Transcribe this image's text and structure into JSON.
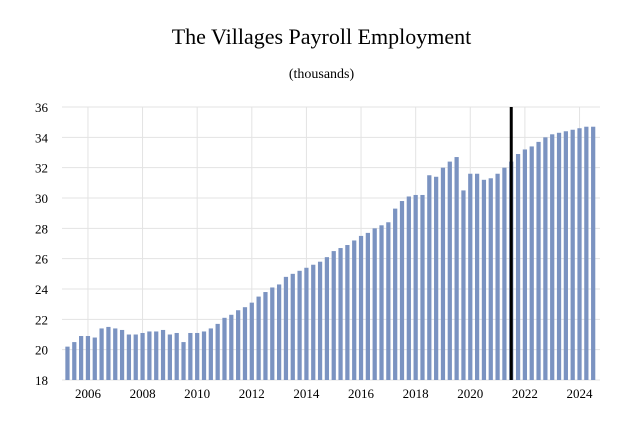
{
  "chart_data": {
    "type": "bar",
    "title": "The Villages Payroll Employment",
    "subtitle": "(thousands)",
    "xlabel": "",
    "ylabel": "",
    "ylim": [
      18,
      36
    ],
    "yticks": [
      18,
      20,
      22,
      24,
      26,
      28,
      30,
      32,
      34,
      36
    ],
    "xticks": [
      2006,
      2008,
      2010,
      2012,
      2014,
      2016,
      2018,
      2020,
      2022,
      2024
    ],
    "grid": true,
    "legend": "none",
    "bar_color": "#7b93c1",
    "vline_color": "#000000",
    "vline_x": 2021.5,
    "x": [
      2005.25,
      2005.5,
      2005.75,
      2006.0,
      2006.25,
      2006.5,
      2006.75,
      2007.0,
      2007.25,
      2007.5,
      2007.75,
      2008.0,
      2008.25,
      2008.5,
      2008.75,
      2009.0,
      2009.25,
      2009.5,
      2009.75,
      2010.0,
      2010.25,
      2010.5,
      2010.75,
      2011.0,
      2011.25,
      2011.5,
      2011.75,
      2012.0,
      2012.25,
      2012.5,
      2012.75,
      2013.0,
      2013.25,
      2013.5,
      2013.75,
      2014.0,
      2014.25,
      2014.5,
      2014.75,
      2015.0,
      2015.25,
      2015.5,
      2015.75,
      2016.0,
      2016.25,
      2016.5,
      2016.75,
      2017.0,
      2017.25,
      2017.5,
      2017.75,
      2018.0,
      2018.25,
      2018.5,
      2018.75,
      2019.0,
      2019.25,
      2019.5,
      2019.75,
      2020.0,
      2020.25,
      2020.5,
      2020.75,
      2021.0,
      2021.25,
      2021.5,
      2021.75,
      2022.0,
      2022.25,
      2022.5,
      2022.75,
      2023.0,
      2023.25,
      2023.5,
      2023.75,
      2024.0,
      2024.25,
      2024.5
    ],
    "values": [
      20.2,
      20.5,
      20.9,
      20.9,
      20.8,
      21.4,
      21.5,
      21.4,
      21.3,
      21.0,
      21.0,
      21.1,
      21.2,
      21.2,
      21.3,
      21.0,
      21.1,
      20.5,
      21.1,
      21.1,
      21.2,
      21.4,
      21.7,
      22.1,
      22.3,
      22.6,
      22.8,
      23.1,
      23.5,
      23.8,
      24.1,
      24.3,
      24.8,
      25.0,
      25.2,
      25.4,
      25.6,
      25.8,
      26.1,
      26.5,
      26.7,
      26.9,
      27.2,
      27.5,
      27.7,
      28.0,
      28.2,
      28.4,
      29.3,
      29.8,
      30.1,
      30.2,
      30.2,
      31.5,
      31.4,
      32.0,
      32.4,
      32.7,
      30.5,
      31.6,
      31.6,
      31.2,
      31.3,
      31.6,
      32.0,
      32.4,
      32.9,
      33.2,
      33.4,
      33.7,
      34.0,
      34.2,
      34.3,
      34.4,
      34.5,
      34.6,
      34.7,
      34.7
    ]
  }
}
